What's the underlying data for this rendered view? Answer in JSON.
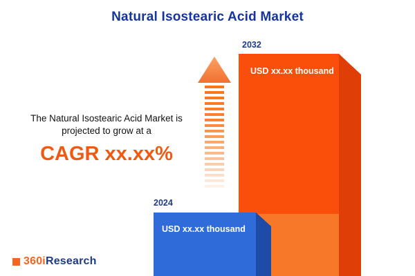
{
  "page": {
    "title": "Natural Isostearic Acid Market"
  },
  "description": {
    "line1": "The Natural Isostearic Acid Market is",
    "line2": "projected to grow at a",
    "cagr": "CAGR xx.xx%"
  },
  "logo": {
    "part1": "360i",
    "part2": "Research"
  },
  "chart_data": {
    "type": "bar",
    "title": "Natural Isostearic Acid Market",
    "categories": [
      "2024",
      "2032"
    ],
    "values": [
      "xx.xx",
      "xx.xx"
    ],
    "unit": "USD thousand",
    "orientation": "vertical",
    "legend": false,
    "annotation": "CAGR xx.xx%",
    "bars": [
      {
        "year": "2024",
        "label": "USD xx.xx thousand",
        "color": "#2f6cd9",
        "side_color": "#1d4ba8"
      },
      {
        "year": "2032",
        "label": "USD xx.xx thousand",
        "color": "#fa4e0b",
        "side_color": "#df3f06",
        "back_color": "#f8782a"
      }
    ]
  },
  "colors": {
    "title": "#16359c",
    "accent_orange": "#ee5a12",
    "arrow": "#f97316"
  }
}
